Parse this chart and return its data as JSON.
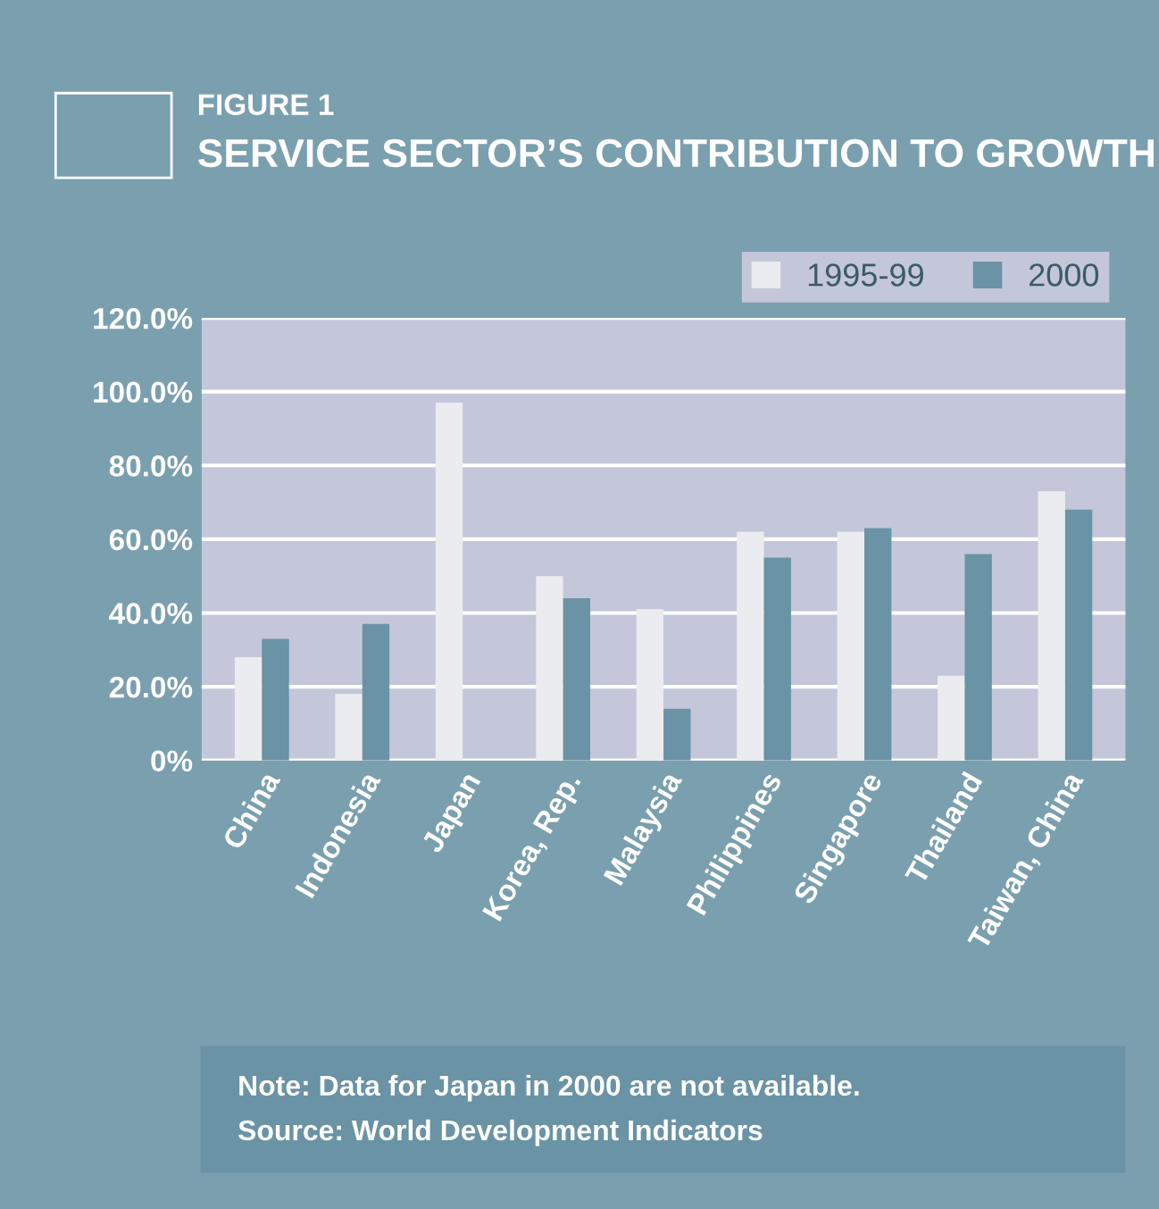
{
  "chart_data": {
    "type": "bar",
    "subtitle": "FIGURE 1",
    "title": "SERVICE SECTOR’S CONTRIBUTION TO GROWTH",
    "categories": [
      "China",
      "Indonesia",
      "Japan",
      "Korea, Rep.",
      "Malaysia",
      "Philippines",
      "Singapore",
      "Thailand",
      "Taiwan, China"
    ],
    "series": [
      {
        "name": "1995-99",
        "color": "#ebecef",
        "values": [
          28,
          18,
          97,
          50,
          41,
          62,
          62,
          23,
          73
        ]
      },
      {
        "name": "2000",
        "color": "#6a93a5",
        "values": [
          33,
          37,
          null,
          44,
          14,
          55,
          63,
          56,
          68
        ]
      }
    ],
    "ylim": [
      0,
      120
    ],
    "yticks": [
      {
        "value": 0,
        "label": "0%"
      },
      {
        "value": 20,
        "label": "20.0%"
      },
      {
        "value": 40,
        "label": "40.0%"
      },
      {
        "value": 60,
        "label": "60.0%"
      },
      {
        "value": 80,
        "label": "80.0%"
      },
      {
        "value": 100,
        "label": "100.0%"
      },
      {
        "value": 120,
        "label": "120.0%"
      }
    ],
    "grid": "y",
    "legend": "top right",
    "annotations": [
      "Note: Data for Japan in 2000 are not available.",
      "Source: World Development Indicators"
    ]
  }
}
